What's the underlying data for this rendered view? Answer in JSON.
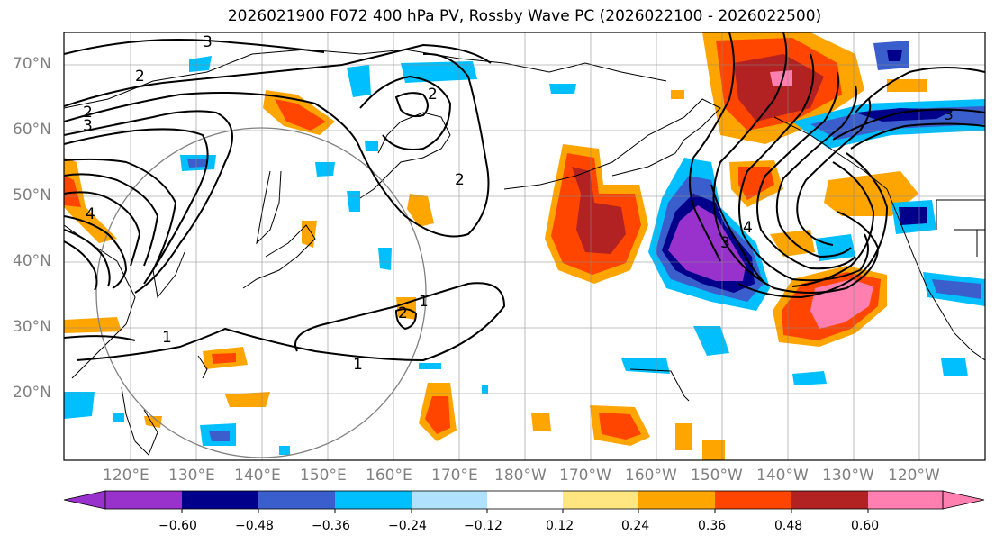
{
  "title": "2026021900 F072 400 hPa PV, Rossby Wave PC (2026022100 - 2026022500)",
  "map": {
    "lat_labels": [
      "70°N",
      "60°N",
      "50°N",
      "40°N",
      "30°N",
      "20°N"
    ],
    "lon_labels": [
      "120°E",
      "130°E",
      "140°E",
      "150°E",
      "160°E",
      "170°E",
      "180°W",
      "170°W",
      "160°W",
      "150°W",
      "140°W",
      "130°W",
      "120°W"
    ],
    "contour_labels": [
      "1",
      "1",
      "1",
      "2",
      "2",
      "2",
      "2",
      "2",
      "3",
      "3",
      "3",
      "3",
      "4",
      "4"
    ]
  },
  "colorbar": {
    "ticks": [
      "−0.60",
      "−0.48",
      "−0.36",
      "−0.24",
      "−0.12",
      "0.12",
      "0.24",
      "0.36",
      "0.48",
      "0.60"
    ],
    "colors": [
      "#9932cc",
      "#00008b",
      "#3a5fcd",
      "#00bfff",
      "#b0e2ff",
      "#ffffff",
      "#ffe680",
      "#ffa500",
      "#ff4500",
      "#b22222",
      "#ff80b0"
    ]
  }
}
